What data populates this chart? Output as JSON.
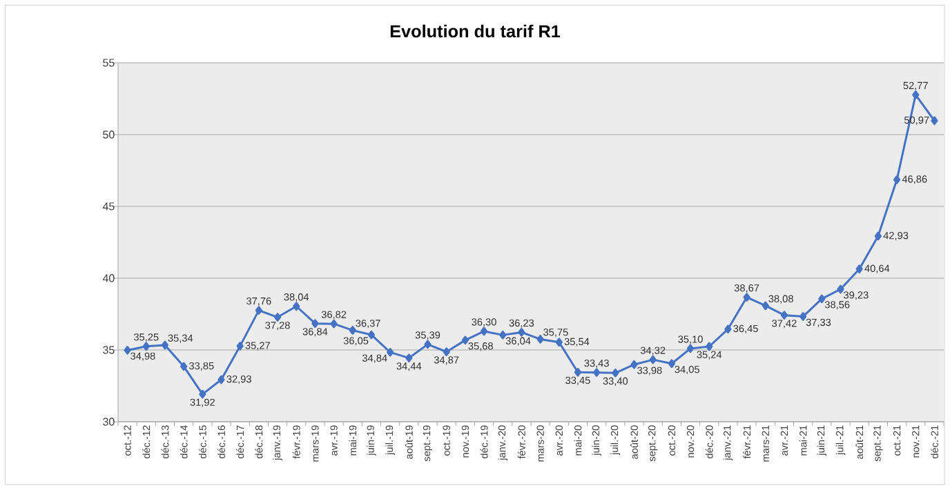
{
  "chart_data": {
    "type": "line",
    "title": "Evolution du tarif R1",
    "categories": [
      "oct.-12",
      "déc.-12",
      "déc.-13",
      "déc.-14",
      "déc.-15",
      "déc.-16",
      "déc.-17",
      "déc.-18",
      "janv.-19",
      "févr.-19",
      "mars-19",
      "avr.-19",
      "mai-19",
      "juin-19",
      "juil.-19",
      "août-19",
      "sept.-19",
      "oct.-19",
      "nov.-19",
      "déc.-19",
      "janv.-20",
      "févr.-20",
      "mars-20",
      "avr.-20",
      "mai-20",
      "juin-20",
      "juil.-20",
      "août-20",
      "sept.-20",
      "oct.-20",
      "nov.-20",
      "déc.-20",
      "janv.-21",
      "févr.-21",
      "mars-21",
      "avr.-21",
      "mai-21",
      "juin-21",
      "juil.-21",
      "août-21",
      "sept.-21",
      "oct.-21",
      "nov.-21",
      "déc.-21"
    ],
    "values": [
      34.98,
      35.25,
      35.34,
      33.85,
      31.92,
      32.93,
      35.27,
      37.76,
      37.28,
      38.04,
      36.84,
      36.82,
      36.37,
      36.05,
      34.84,
      34.44,
      35.39,
      34.87,
      35.68,
      36.3,
      36.04,
      36.23,
      35.75,
      35.54,
      33.45,
      33.43,
      33.4,
      33.98,
      34.32,
      34.05,
      35.1,
      35.24,
      36.45,
      38.67,
      38.08,
      37.42,
      37.33,
      38.56,
      39.23,
      40.64,
      42.93,
      46.86,
      52.77,
      50.97
    ],
    "value_labels": [
      "34,98",
      "35,25",
      "35,34",
      "33,85",
      "31,92",
      "32,93",
      "35,27",
      "37,76",
      "37,28",
      "38,04",
      "36,84",
      "36,82",
      "36,37",
      "36,05",
      "34,84",
      "34,44",
      "35,39",
      "34,87",
      "35,68",
      "36,30",
      "36,04",
      "36,23",
      "35,75",
      "35,54",
      "33,45",
      "33,43",
      "33,40",
      "33,98",
      "34,32",
      "34,05",
      "35,10",
      "35,24",
      "36,45",
      "38,67",
      "38,08",
      "37,42",
      "37,33",
      "38,56",
      "39,23",
      "40,64",
      "42,93",
      "46,86",
      "52,77",
      "50,97"
    ],
    "color": "#4472c4",
    "ylim": [
      30,
      55
    ],
    "yticks": [
      30,
      35,
      40,
      45,
      50,
      55
    ],
    "grid": "y",
    "marker": "diamond",
    "line_style": "solid"
  }
}
